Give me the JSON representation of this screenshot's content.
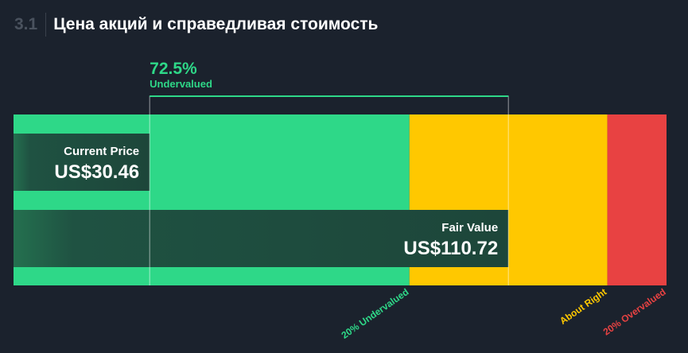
{
  "header": {
    "section_number": "3.1",
    "title": "Цена акций и справедливая стоимость"
  },
  "colors": {
    "background": "#1b222d",
    "undervalued": "#2ed888",
    "about_right": "#ffc800",
    "overvalued": "#e84242",
    "bar_overlay": "#1e4a3c"
  },
  "chart_data": {
    "type": "bar",
    "orientation": "horizontal",
    "currency": "US$",
    "current_price": {
      "label": "Current Price",
      "value": 30.46,
      "display": "US$30.46"
    },
    "fair_value": {
      "label": "Fair Value",
      "value": 110.72,
      "display": "US$110.72"
    },
    "discount": {
      "percent": "72.5%",
      "label": "Undervalued"
    },
    "zones": [
      {
        "name": "20% Undervalued",
        "from": 0,
        "to": 88.58,
        "color": "#2ed888"
      },
      {
        "name": "About Right",
        "from": 88.58,
        "to": 132.86,
        "color": "#ffc800"
      },
      {
        "name": "20% Overvalued",
        "from": 132.86,
        "to": 146.1,
        "color": "#e84242"
      }
    ],
    "xlim": [
      0,
      146.1
    ]
  }
}
